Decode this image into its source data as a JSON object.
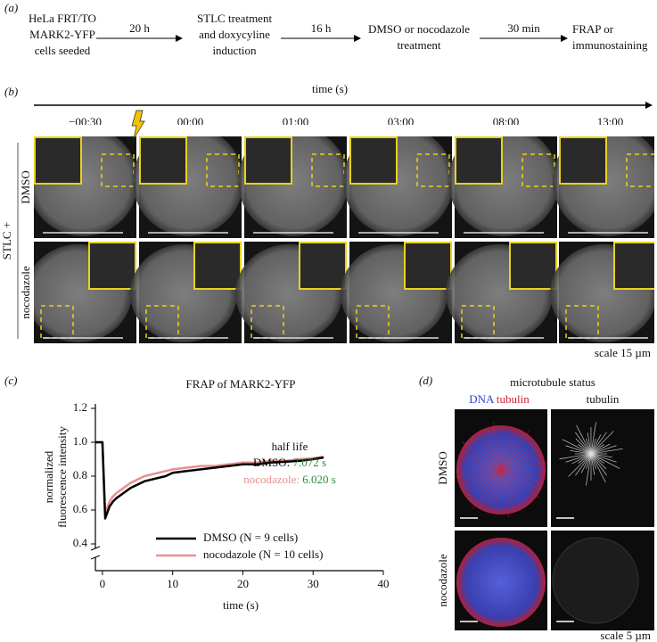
{
  "figure": {
    "a": {
      "label": "(a)",
      "steps": [
        [
          "HeLa FRT/TO",
          "MARK2-YFP",
          "cells seeded"
        ],
        [
          "STLC treatment",
          "and doxycyline",
          "induction"
        ],
        [
          "DMSO or nocodazole",
          "treatment"
        ],
        [
          "FRAP or",
          "immunostaining"
        ]
      ],
      "arrows": [
        "20 h",
        "16 h",
        "30 min"
      ]
    },
    "b": {
      "label": "(b)",
      "axis_label": "time (s)",
      "timepoints": [
        "−00:30",
        "00:00",
        "01:00",
        "03:00",
        "08:00",
        "13:00"
      ],
      "row_labels": [
        "DMSO",
        "nocodazole"
      ],
      "group_label": "STLC +",
      "scale": "scale 15 µm"
    },
    "c": {
      "label": "(c)"
    },
    "d": {
      "label": "(d)",
      "title": "microtubule status",
      "col_label_dna": "DNA",
      "col_label_tubulin": "tubulin",
      "col_label_2": "tubulin",
      "row_labels": [
        "DMSO",
        "nocodazole"
      ],
      "scale": "scale 5 µm"
    }
  },
  "chart_data": {
    "type": "line",
    "title": "FRAP of MARK2-YFP",
    "x_label": "time (s)",
    "y_label": [
      "normalized",
      "fluorescence intensity"
    ],
    "x": [
      -1,
      0,
      0.4,
      1,
      1.5,
      2,
      3,
      4,
      5,
      6,
      7,
      8,
      9,
      10,
      12,
      14,
      16,
      18,
      20,
      22,
      24,
      26,
      28,
      30,
      31.5
    ],
    "series": [
      {
        "name": "DMSO (N = 9 cells)",
        "color": "#000000",
        "values": [
          1,
          1,
          0.55,
          0.62,
          0.65,
          0.67,
          0.7,
          0.73,
          0.75,
          0.77,
          0.78,
          0.79,
          0.8,
          0.82,
          0.83,
          0.84,
          0.85,
          0.86,
          0.87,
          0.87,
          0.88,
          0.885,
          0.89,
          0.9,
          0.91
        ]
      },
      {
        "name": "nocodazole (N = 10 cells)",
        "color": "#e8918f",
        "values": [
          1,
          1,
          0.58,
          0.65,
          0.68,
          0.7,
          0.73,
          0.76,
          0.78,
          0.8,
          0.81,
          0.82,
          0.83,
          0.84,
          0.85,
          0.86,
          0.86,
          0.87,
          0.88,
          0.88,
          0.89,
          0.89,
          0.9,
          0.905,
          0.915
        ]
      }
    ],
    "annotation": {
      "title": "half life",
      "color": "#2e8b3c",
      "entries": [
        {
          "name": "DMSO:",
          "value": "7.072 s"
        },
        {
          "name": "nocodazole:",
          "value": "6.020 s"
        }
      ]
    },
    "xlim": [
      -1,
      40
    ],
    "xticks": [
      0,
      10,
      20,
      30,
      40
    ],
    "ylim": [
      0.4,
      1.2
    ],
    "yticks": [
      0.4,
      0.6,
      0.8,
      {
        "value": 1,
        "label": "1.0"
      },
      1.2
    ],
    "legend": "lower-left",
    "grid": false
  }
}
